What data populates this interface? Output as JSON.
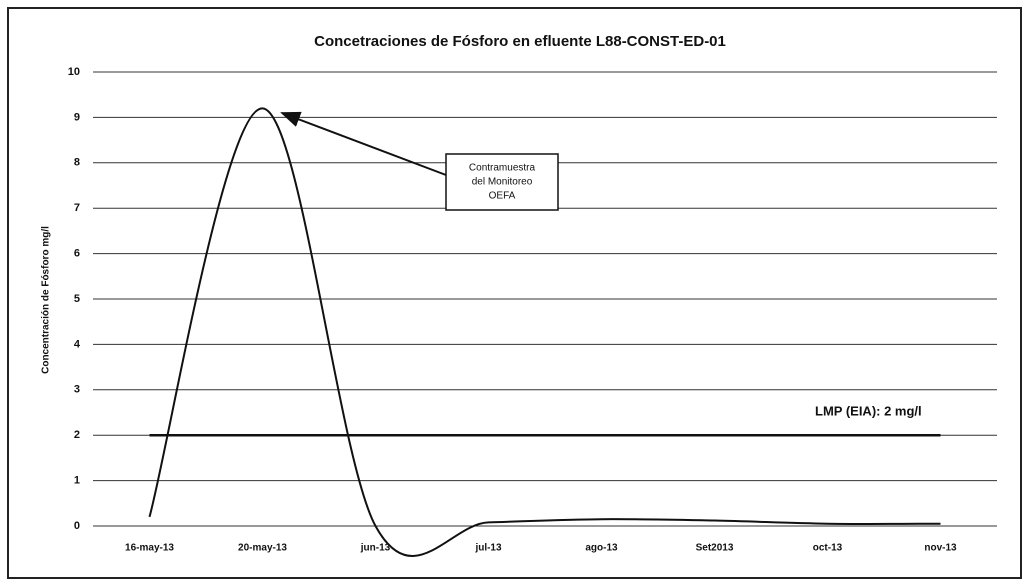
{
  "chart_data": {
    "type": "line",
    "title": "Concetraciones de Fósforo en efluente L88-CONST-ED-01",
    "y_label": "Concentración de Fósforo mg/l",
    "categories": [
      "16-may-13",
      "20-may-13",
      "jun-13",
      "jul-13",
      "ago-13",
      "Set2013",
      "oct-13",
      "nov-13"
    ],
    "series": [
      {
        "color": "#111111",
        "values": [
          0.2,
          9.2,
          0,
          0.08,
          0.15,
          0.12,
          0.05,
          0.05
        ]
      },
      {
        "color": "#111111",
        "values": [
          2,
          2,
          2,
          2,
          2,
          2,
          2,
          2
        ]
      }
    ],
    "ylim": [
      0,
      10
    ],
    "yticks": [
      0,
      1,
      2,
      3,
      4,
      5,
      6,
      7,
      8,
      9,
      10
    ],
    "grid": true,
    "annotations": [
      "Contramuestra",
      "del Monitoreo",
      "OEFA",
      "LMP (EIA):  2 mg/l"
    ]
  }
}
